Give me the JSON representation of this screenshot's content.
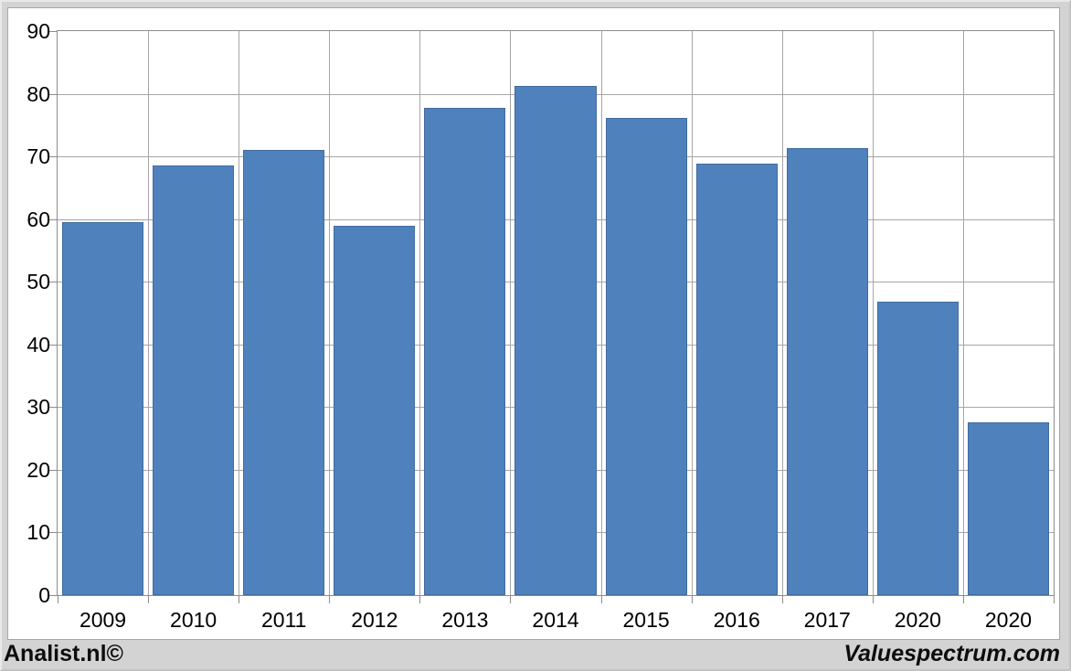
{
  "chart_data": {
    "type": "bar",
    "title": "",
    "xlabel": "",
    "ylabel": "",
    "categories": [
      "2009",
      "2010",
      "2011",
      "2012",
      "2013",
      "2014",
      "2015",
      "2016",
      "2017",
      "2020",
      "2020"
    ],
    "values": [
      59.5,
      68.6,
      71.1,
      59.0,
      77.7,
      81.2,
      76.1,
      68.9,
      71.4,
      46.8,
      27.5
    ],
    "ylim": [
      0,
      90
    ],
    "ytick_step": 10,
    "ytick_labels": [
      "0",
      "10",
      "20",
      "30",
      "40",
      "50",
      "60",
      "70",
      "80",
      "90"
    ],
    "grid": true,
    "legend": false,
    "bar_color": "#4f81bd",
    "bar_border_color": "#416c9e",
    "gridline_color": "#a6a6a6",
    "plot_border_color": "#8c8c8c",
    "plot_background": "#ffffff",
    "frame_color": "#d3d3d3"
  },
  "footer": {
    "left_text": "Analist.nl©",
    "right_text": "Valuespectrum.com"
  }
}
